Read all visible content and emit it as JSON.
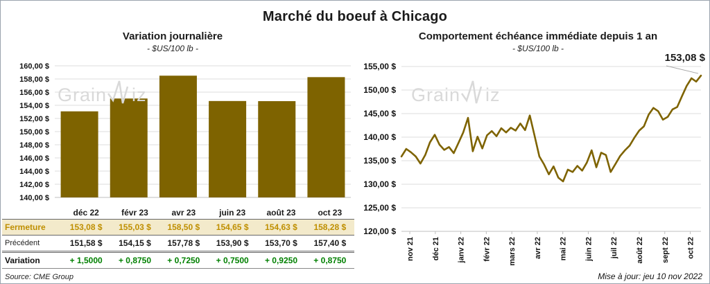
{
  "page": {
    "title": "Marché du boeuf à Chicago",
    "source": "Source: CME Group",
    "updated": "Mise à jour: jeu 10 nov 2022",
    "watermark": {
      "part1": "Grain",
      "part2": "iz"
    }
  },
  "colors": {
    "series_gold": "#7e6300",
    "fermeture_text": "#bf8f00",
    "fermeture_bg": "#f3eacb",
    "variation_green": "#008000",
    "gridline": "#dcdcdc",
    "axis": "#bfbfbf",
    "watermark": "#d9d9d9",
    "leader_line": "#a6a6a6"
  },
  "chart_data": [
    {
      "type": "bar",
      "title": "Variation journalière",
      "subtitle": "- $US/100 lb -",
      "categories": [
        "déc 22",
        "févr 23",
        "avr 23",
        "juin 23",
        "août 23",
        "oct 23"
      ],
      "values": [
        153.08,
        155.03,
        158.5,
        154.65,
        154.63,
        158.28
      ],
      "ylabel_format": "fr_dollar",
      "ylim": [
        140,
        160
      ],
      "ytick_step": 2,
      "grid": true,
      "legend": "none"
    },
    {
      "type": "line",
      "title": "Comportement échéance immédiate depuis 1 an",
      "subtitle": "- $US/100 lb -",
      "x_tick_labels": [
        "nov 21",
        "déc 21",
        "janv 22",
        "févr 22",
        "mars 22",
        "avr 22",
        "mai 22",
        "juin 22",
        "juil 22",
        "août 22",
        "sept 22",
        "oct 22"
      ],
      "values": [
        135.9,
        137.5,
        136.8,
        135.9,
        134.4,
        136.2,
        138.9,
        140.5,
        138.4,
        137.3,
        137.9,
        136.6,
        138.8,
        141.0,
        144.1,
        137.0,
        140.1,
        137.6,
        140.4,
        141.3,
        140.2,
        141.9,
        141.0,
        142.0,
        141.4,
        142.9,
        141.5,
        144.6,
        140.3,
        135.9,
        134.2,
        132.1,
        133.8,
        131.4,
        130.6,
        133.1,
        132.6,
        133.9,
        132.9,
        134.6,
        137.2,
        133.6,
        136.7,
        136.2,
        132.6,
        134.3,
        136.0,
        137.2,
        138.2,
        139.9,
        141.4,
        142.3,
        144.8,
        146.2,
        145.5,
        143.7,
        144.3,
        145.9,
        146.4,
        148.7,
        150.9,
        152.5,
        151.8,
        153.08
      ],
      "ylim": [
        120,
        155
      ],
      "ytick_step": 5,
      "grid": true,
      "legend": "none",
      "last_point_label": "153,08 $"
    }
  ],
  "table": {
    "columns": [
      "déc 22",
      "févr 23",
      "avr 23",
      "juin 23",
      "août 23",
      "oct 23"
    ],
    "rows": [
      {
        "key": "fermeture",
        "label": "Fermeture",
        "values": [
          "153,08 $",
          "155,03 $",
          "158,50 $",
          "154,65 $",
          "154,63 $",
          "158,28 $"
        ]
      },
      {
        "key": "precedent",
        "label": "Précédent",
        "values": [
          "151,58 $",
          "154,15 $",
          "157,78 $",
          "153,90 $",
          "153,70 $",
          "157,40 $"
        ]
      },
      {
        "key": "variation",
        "label": "Variation",
        "values": [
          "+ 1,5000",
          "+ 0,8750",
          "+ 0,7250",
          "+ 0,7500",
          "+ 0,9250",
          "+ 0,8750"
        ]
      }
    ]
  }
}
